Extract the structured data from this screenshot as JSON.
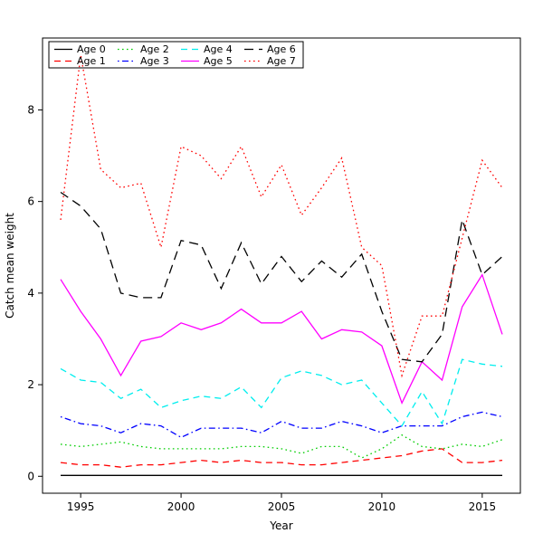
{
  "figure": {
    "background": "#ffffff"
  },
  "chart_data": {
    "type": "line",
    "title": "",
    "xlabel": "Year",
    "ylabel": "Catch mean weight",
    "x": [
      1994,
      1995,
      1996,
      1997,
      1998,
      1999,
      2000,
      2001,
      2002,
      2003,
      2004,
      2005,
      2006,
      2007,
      2008,
      2009,
      2010,
      2011,
      2012,
      2013,
      2014,
      2015,
      2016
    ],
    "xlim": [
      1993.1,
      2016.9
    ],
    "ylim": [
      -0.37,
      9.57
    ],
    "xticks": [
      1995,
      2000,
      2005,
      2010,
      2015
    ],
    "yticks": [
      0,
      2,
      4,
      6,
      8
    ],
    "grid": false,
    "legend_position": "top-left",
    "legend_ncol": 4,
    "series": [
      {
        "name": "Age 0",
        "color": "#000000",
        "linestyle": "solid",
        "values": [
          0.02,
          0.02,
          0.02,
          0.02,
          0.02,
          0.02,
          0.02,
          0.02,
          0.02,
          0.02,
          0.02,
          0.02,
          0.02,
          0.02,
          0.02,
          0.02,
          0.02,
          0.02,
          0.02,
          0.02,
          0.02,
          0.02,
          0.02
        ]
      },
      {
        "name": "Age 1",
        "color": "#ff0000",
        "linestyle": "dashed",
        "values": [
          0.3,
          0.25,
          0.25,
          0.2,
          0.25,
          0.25,
          0.3,
          0.35,
          0.3,
          0.35,
          0.3,
          0.3,
          0.25,
          0.25,
          0.3,
          0.35,
          0.4,
          0.45,
          0.55,
          0.6,
          0.3,
          0.3,
          0.35
        ]
      },
      {
        "name": "Age 2",
        "color": "#00cd00",
        "linestyle": "dotted",
        "values": [
          0.7,
          0.65,
          0.7,
          0.75,
          0.65,
          0.6,
          0.6,
          0.6,
          0.6,
          0.65,
          0.65,
          0.6,
          0.5,
          0.65,
          0.65,
          0.4,
          0.6,
          0.9,
          0.65,
          0.6,
          0.7,
          0.65,
          0.8
        ]
      },
      {
        "name": "Age 3",
        "color": "#0000ff",
        "linestyle": "dotdash",
        "values": [
          1.3,
          1.15,
          1.1,
          0.95,
          1.15,
          1.1,
          0.85,
          1.05,
          1.05,
          1.05,
          0.95,
          1.2,
          1.05,
          1.05,
          1.2,
          1.1,
          0.95,
          1.1,
          1.1,
          1.1,
          1.3,
          1.4,
          1.3
        ]
      },
      {
        "name": "Age 4",
        "color": "#00eeee",
        "linestyle": "dashed",
        "values": [
          2.35,
          2.1,
          2.05,
          1.7,
          1.9,
          1.5,
          1.65,
          1.75,
          1.7,
          1.95,
          1.5,
          2.15,
          2.3,
          2.2,
          2.0,
          2.1,
          1.6,
          1.1,
          1.85,
          1.15,
          2.55,
          2.45,
          2.4
        ]
      },
      {
        "name": "Age 5",
        "color": "#ff00ff",
        "linestyle": "solid",
        "values": [
          4.3,
          3.6,
          3.0,
          2.2,
          2.95,
          3.05,
          3.35,
          3.2,
          3.35,
          3.65,
          3.35,
          3.35,
          3.6,
          3.0,
          3.2,
          3.15,
          2.85,
          1.6,
          2.5,
          2.1,
          3.7,
          4.4,
          3.1
        ]
      },
      {
        "name": "Age 6",
        "color": "#000000",
        "linestyle": "longdash",
        "values": [
          6.2,
          5.9,
          5.4,
          4.0,
          3.9,
          3.9,
          5.15,
          5.05,
          4.1,
          5.1,
          4.2,
          4.8,
          4.25,
          4.7,
          4.35,
          4.85,
          3.6,
          2.55,
          2.5,
          3.1,
          5.6,
          4.4,
          4.8
        ]
      },
      {
        "name": "Age 7",
        "color": "#ff0000",
        "linestyle": "dotted",
        "values": [
          5.6,
          9.2,
          6.7,
          6.3,
          6.4,
          5.0,
          7.2,
          7.0,
          6.5,
          7.2,
          6.1,
          6.8,
          5.7,
          6.3,
          6.95,
          5.0,
          4.6,
          2.2,
          3.5,
          3.5,
          5.2,
          6.9,
          6.3
        ]
      }
    ]
  }
}
